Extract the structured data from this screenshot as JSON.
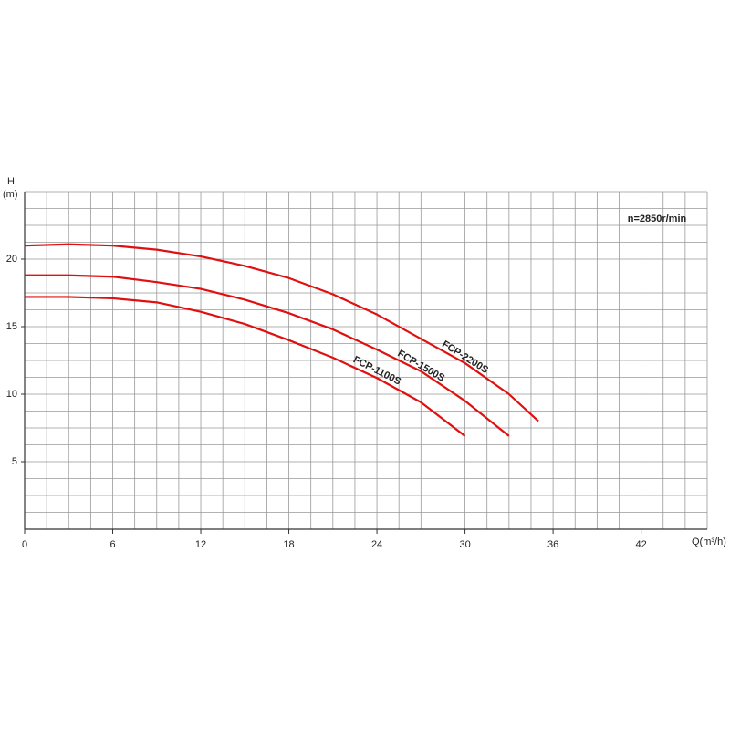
{
  "chart_data": {
    "type": "line",
    "ylabel": "H",
    "ylabel_unit": "(m)",
    "xlabel": "Q(m³/h)",
    "annotation": "n=2850r/min",
    "annotation_color": "#e01010",
    "x": [
      0,
      3,
      6,
      9,
      12,
      15,
      18,
      21,
      24,
      27,
      30,
      33,
      35
    ],
    "series": [
      {
        "name": "FCP-2200S",
        "color": "#e01010",
        "values": [
          21.0,
          21.1,
          21.0,
          20.7,
          20.2,
          19.5,
          18.6,
          17.4,
          15.9,
          14.1,
          12.3,
          10.0,
          8.0
        ]
      },
      {
        "name": "FCP-1500S",
        "color": "#e01010",
        "values": [
          18.8,
          18.8,
          18.7,
          18.3,
          17.8,
          17.0,
          16.0,
          14.8,
          13.3,
          11.7,
          9.5,
          6.9,
          null
        ]
      },
      {
        "name": "FCP-1100S",
        "color": "#e01010",
        "values": [
          17.2,
          17.2,
          17.1,
          16.8,
          16.1,
          15.2,
          14.0,
          12.7,
          11.2,
          9.4,
          6.9,
          null,
          null
        ]
      }
    ],
    "xlim": [
      0,
      46.5
    ],
    "xticks": [
      0,
      6,
      12,
      18,
      24,
      30,
      36,
      42
    ],
    "ylim": [
      0,
      25
    ],
    "yticks": [
      5,
      10,
      15,
      20
    ],
    "grid": true,
    "xgrid_step": 1.5,
    "ygrid_step": 1.25
  }
}
